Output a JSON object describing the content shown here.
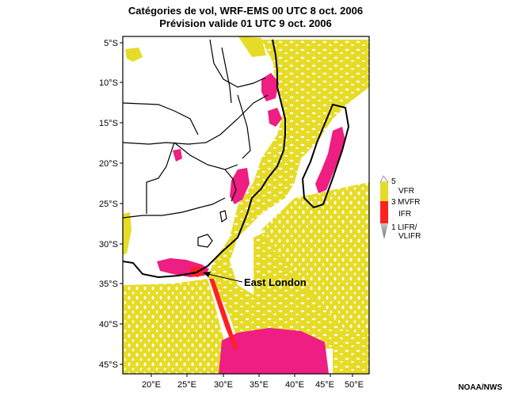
{
  "title": {
    "line1": "Catégories de vol, WRF-EMS 00 UTC 8 oct. 2006",
    "line2": "Prévision valide 01 UTC 9 oct. 2006"
  },
  "map": {
    "lat_labels": [
      "5°S",
      "10°S",
      "15°S",
      "20°S",
      "25°S",
      "30°S",
      "35°S",
      "40°S",
      "45°S"
    ],
    "lon_labels": [
      "20°E",
      "25°E",
      "30°E",
      "35°E",
      "40°E",
      "45°E",
      "50°E"
    ],
    "annotation": "East London",
    "colors": {
      "vfr": "#e6dc28",
      "mvfr": "#ee1e82",
      "ifr": "#ff2020",
      "lifr": "#a0a0a0"
    }
  },
  "legend": {
    "ticks": [
      "5",
      "3",
      "1"
    ],
    "labels": [
      "VFR",
      "MVFR",
      "IFR",
      "LIFR/",
      "VLIFR"
    ]
  },
  "credit": "NOAA/NWS"
}
